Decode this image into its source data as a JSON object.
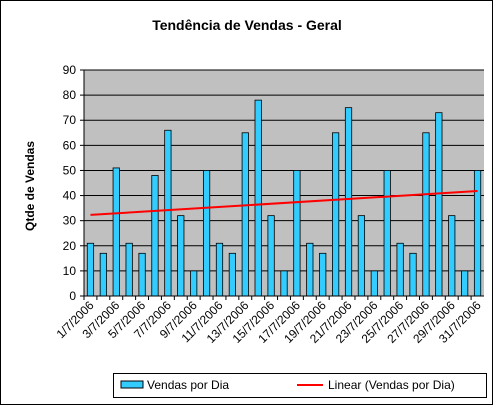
{
  "chart_data": {
    "type": "bar",
    "title": "Tendência de Vendas - Geral",
    "y_label": "Qtde de Vendas",
    "categories": [
      "1/7/2006",
      null,
      "3/7/2006",
      null,
      "5/7/2006",
      null,
      "7/7/2006",
      null,
      "9/7/2006",
      null,
      "11/7/2006",
      null,
      "13/7/2006",
      null,
      "15/7/2006",
      null,
      "17/7/2006",
      null,
      "19/7/2006",
      null,
      "21/7/2006",
      null,
      "23/7/2006",
      null,
      "25/7/2006",
      null,
      "27/7/2006",
      null,
      "29/7/2006",
      null,
      "31/7/2006"
    ],
    "series": [
      {
        "name": "Vendas por Dia",
        "color": "#33ccff",
        "values": [
          21,
          17,
          51,
          21,
          17,
          48,
          66,
          32,
          10,
          50,
          21,
          17,
          65,
          78,
          32,
          10,
          50,
          21,
          17,
          65,
          75,
          32,
          10,
          50,
          21,
          17,
          65,
          73,
          32,
          10,
          50
        ]
      }
    ],
    "trendline": {
      "name": "Linear (Vendas por Dia)",
      "color": "#ff0000",
      "values": [
        32.3,
        41.8
      ]
    },
    "ylim": [
      0,
      90
    ],
    "yticks": [
      0,
      10,
      20,
      30,
      40,
      50,
      60,
      70,
      80,
      90
    ],
    "grid": true
  }
}
